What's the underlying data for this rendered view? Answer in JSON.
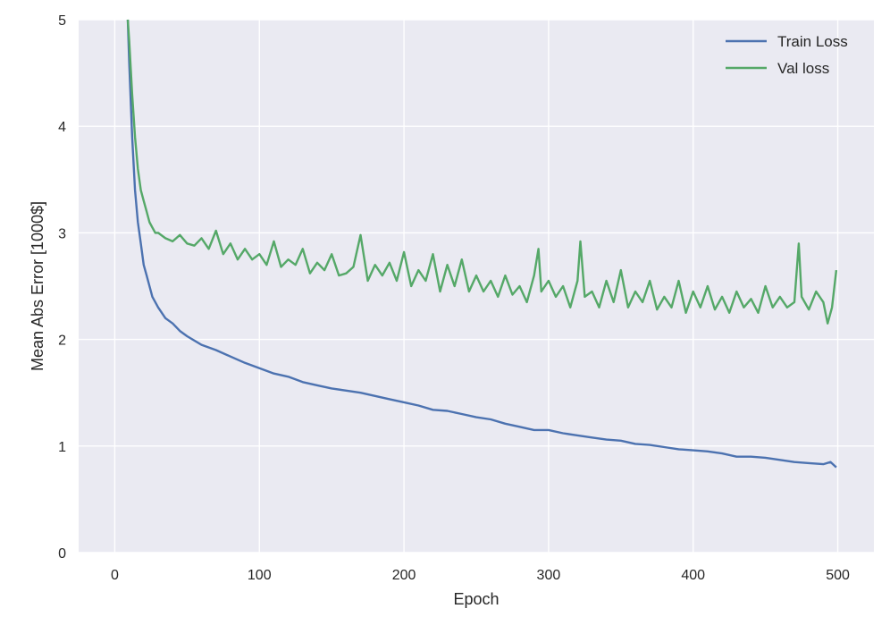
{
  "chart_data": {
    "type": "line",
    "xlabel": "Epoch",
    "ylabel": "Mean Abs Error [1000$]",
    "xlim": [
      -25,
      525
    ],
    "ylim": [
      0,
      5
    ],
    "xticks": [
      0,
      100,
      200,
      300,
      400,
      500
    ],
    "yticks": [
      0,
      1,
      2,
      3,
      4,
      5
    ],
    "xtick_labels": [
      "0",
      "100",
      "200",
      "300",
      "400",
      "500"
    ],
    "ytick_labels": [
      "0",
      "1",
      "2",
      "3",
      "4",
      "5"
    ],
    "grid": true,
    "legend_position": "top-right",
    "background_color": "#eaeaf2",
    "grid_color": "#ffffff",
    "series": [
      {
        "name": "Train Loss",
        "color": "#4c72b0",
        "x": [
          9,
          10,
          12,
          14,
          16,
          18,
          20,
          22,
          24,
          26,
          28,
          30,
          35,
          40,
          45,
          50,
          60,
          70,
          80,
          90,
          100,
          110,
          120,
          130,
          140,
          150,
          160,
          170,
          180,
          190,
          200,
          210,
          220,
          230,
          240,
          250,
          260,
          270,
          280,
          290,
          300,
          310,
          320,
          330,
          340,
          350,
          360,
          370,
          380,
          390,
          400,
          410,
          420,
          430,
          440,
          450,
          460,
          470,
          480,
          490,
          495,
          499
        ],
        "y": [
          5.0,
          4.6,
          3.9,
          3.4,
          3.1,
          2.9,
          2.7,
          2.6,
          2.5,
          2.4,
          2.35,
          2.3,
          2.2,
          2.15,
          2.08,
          2.03,
          1.95,
          1.9,
          1.84,
          1.78,
          1.73,
          1.68,
          1.65,
          1.6,
          1.57,
          1.54,
          1.52,
          1.5,
          1.47,
          1.44,
          1.41,
          1.38,
          1.34,
          1.33,
          1.3,
          1.27,
          1.25,
          1.21,
          1.18,
          1.15,
          1.15,
          1.12,
          1.1,
          1.08,
          1.06,
          1.05,
          1.02,
          1.01,
          0.99,
          0.97,
          0.96,
          0.95,
          0.93,
          0.9,
          0.9,
          0.89,
          0.87,
          0.85,
          0.84,
          0.83,
          0.85,
          0.8
        ]
      },
      {
        "name": "Val loss",
        "color": "#55a868",
        "x": [
          9,
          10,
          12,
          14,
          16,
          18,
          20,
          22,
          24,
          26,
          28,
          30,
          35,
          40,
          45,
          50,
          55,
          60,
          65,
          70,
          75,
          80,
          85,
          90,
          95,
          100,
          105,
          110,
          115,
          120,
          125,
          130,
          135,
          140,
          145,
          150,
          155,
          160,
          165,
          170,
          175,
          180,
          185,
          190,
          195,
          200,
          205,
          210,
          215,
          220,
          225,
          230,
          235,
          240,
          245,
          250,
          255,
          260,
          265,
          270,
          275,
          280,
          285,
          290,
          293,
          295,
          300,
          305,
          310,
          315,
          320,
          322,
          325,
          330,
          335,
          340,
          345,
          350,
          355,
          360,
          365,
          370,
          375,
          380,
          385,
          390,
          395,
          400,
          405,
          410,
          415,
          420,
          425,
          430,
          435,
          440,
          445,
          450,
          455,
          460,
          465,
          470,
          473,
          475,
          480,
          485,
          490,
          493,
          496,
          499
        ],
        "y": [
          5.0,
          4.8,
          4.3,
          3.9,
          3.6,
          3.4,
          3.3,
          3.2,
          3.1,
          3.05,
          3.0,
          3.0,
          2.95,
          2.92,
          2.98,
          2.9,
          2.88,
          2.95,
          2.85,
          3.02,
          2.8,
          2.9,
          2.75,
          2.85,
          2.75,
          2.8,
          2.7,
          2.92,
          2.68,
          2.75,
          2.7,
          2.85,
          2.62,
          2.72,
          2.65,
          2.8,
          2.6,
          2.62,
          2.68,
          2.98,
          2.55,
          2.7,
          2.6,
          2.72,
          2.55,
          2.82,
          2.5,
          2.65,
          2.55,
          2.8,
          2.45,
          2.7,
          2.5,
          2.75,
          2.45,
          2.6,
          2.45,
          2.55,
          2.4,
          2.6,
          2.42,
          2.5,
          2.35,
          2.6,
          2.85,
          2.45,
          2.55,
          2.4,
          2.5,
          2.3,
          2.55,
          2.92,
          2.4,
          2.45,
          2.3,
          2.55,
          2.35,
          2.65,
          2.3,
          2.45,
          2.35,
          2.55,
          2.28,
          2.4,
          2.3,
          2.55,
          2.25,
          2.45,
          2.3,
          2.5,
          2.28,
          2.4,
          2.25,
          2.45,
          2.3,
          2.38,
          2.25,
          2.5,
          2.3,
          2.4,
          2.3,
          2.35,
          2.9,
          2.4,
          2.28,
          2.45,
          2.35,
          2.15,
          2.3,
          2.65
        ]
      }
    ]
  }
}
